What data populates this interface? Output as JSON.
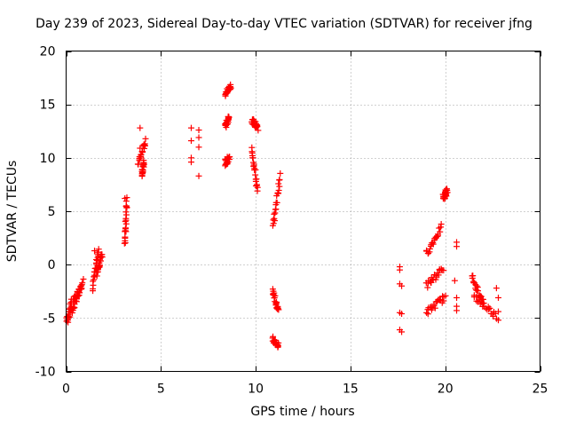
{
  "chart_data": {
    "type": "scatter",
    "title": "Day 239 of 2023, Sidereal Day-to-day VTEC variation (SDTVAR) for receiver jfng",
    "xlabel": "GPS time / hours",
    "ylabel": "SDTVAR / TECUs",
    "xlim": [
      0,
      25
    ],
    "ylim": [
      -10,
      20
    ],
    "xticks": [
      0,
      5,
      10,
      15,
      20,
      25
    ],
    "yticks": [
      -10,
      -5,
      0,
      5,
      10,
      15,
      20
    ],
    "grid": true,
    "marker": "plus",
    "color": "#ff0000",
    "segments": [
      {
        "x0": 0.0,
        "x1": 0.3,
        "y0": -5.5,
        "y1": -3.5
      },
      {
        "x0": 0.3,
        "x1": 0.9,
        "y0": -4.5,
        "y1": -1.5
      },
      {
        "x0": 0.4,
        "x1": 0.8,
        "y0": -3.5,
        "y1": -2.0
      },
      {
        "x0": 1.4,
        "x1": 1.7,
        "y0": -2.2,
        "y1": 1.2
      },
      {
        "x0": 1.6,
        "x1": 1.9,
        "y0": -1.0,
        "y1": 1.0
      },
      {
        "x0": 3.1,
        "x1": 3.2,
        "y0": 2.0,
        "y1": 6.0
      },
      {
        "x0": 3.8,
        "x1": 4.2,
        "y0": 9.5,
        "y1": 11.5
      },
      {
        "x0": 4.0,
        "x1": 4.1,
        "y0": 8.5,
        "y1": 9.5
      },
      {
        "x0": 8.4,
        "x1": 8.7,
        "y0": 16.0,
        "y1": 16.7
      },
      {
        "x0": 8.4,
        "x1": 8.6,
        "y0": 13.0,
        "y1": 13.8
      },
      {
        "x0": 8.4,
        "x1": 8.6,
        "y0": 9.5,
        "y1": 10.0
      },
      {
        "x0": 9.8,
        "x1": 10.1,
        "y0": 13.5,
        "y1": 12.8
      },
      {
        "x0": 9.8,
        "x1": 10.1,
        "y0": 11.0,
        "y1": 6.8
      },
      {
        "x0": 10.9,
        "x1": 11.3,
        "y0": 3.5,
        "y1": 8.3
      },
      {
        "x0": 10.9,
        "x1": 11.2,
        "y0": -2.3,
        "y1": -4.5
      },
      {
        "x0": 10.9,
        "x1": 11.2,
        "y0": -7.0,
        "y1": -7.6
      },
      {
        "x0": 19.0,
        "x1": 19.8,
        "y0": 1.0,
        "y1": 3.5
      },
      {
        "x0": 19.0,
        "x1": 19.9,
        "y0": -2.0,
        "y1": -0.3
      },
      {
        "x0": 19.0,
        "x1": 20.0,
        "y0": -4.5,
        "y1": -3.0
      },
      {
        "x0": 19.9,
        "x1": 20.1,
        "y0": 6.3,
        "y1": 6.9
      },
      {
        "x0": 21.4,
        "x1": 22.0,
        "y0": -1.2,
        "y1": -3.5
      },
      {
        "x0": 21.5,
        "x1": 22.7,
        "y0": -3.0,
        "y1": -4.8
      }
    ],
    "points": [
      [
        3.9,
        12.8
      ],
      [
        3.9,
        10.9
      ],
      [
        6.6,
        12.8
      ],
      [
        6.6,
        11.6
      ],
      [
        6.6,
        10.0
      ],
      [
        6.6,
        9.6
      ],
      [
        7.0,
        12.6
      ],
      [
        7.0,
        11.9
      ],
      [
        7.0,
        11.0
      ],
      [
        7.0,
        8.3
      ],
      [
        17.6,
        -0.2
      ],
      [
        17.6,
        -0.5
      ],
      [
        17.6,
        -1.8
      ],
      [
        17.7,
        -2.0
      ],
      [
        17.6,
        -4.5
      ],
      [
        17.7,
        -4.6
      ],
      [
        17.6,
        -6.1
      ],
      [
        17.7,
        -6.3
      ],
      [
        20.6,
        2.1
      ],
      [
        20.6,
        1.7
      ],
      [
        20.5,
        -1.5
      ],
      [
        20.6,
        -3.1
      ],
      [
        20.6,
        -3.9
      ],
      [
        20.6,
        -4.3
      ],
      [
        22.7,
        -2.2
      ],
      [
        22.8,
        -3.1
      ],
      [
        22.8,
        -4.4
      ],
      [
        22.8,
        -5.2
      ],
      [
        0.1,
        -5.4
      ],
      [
        0.2,
        -4.9
      ],
      [
        1.5,
        1.3
      ],
      [
        3.1,
        6.2
      ]
    ]
  }
}
